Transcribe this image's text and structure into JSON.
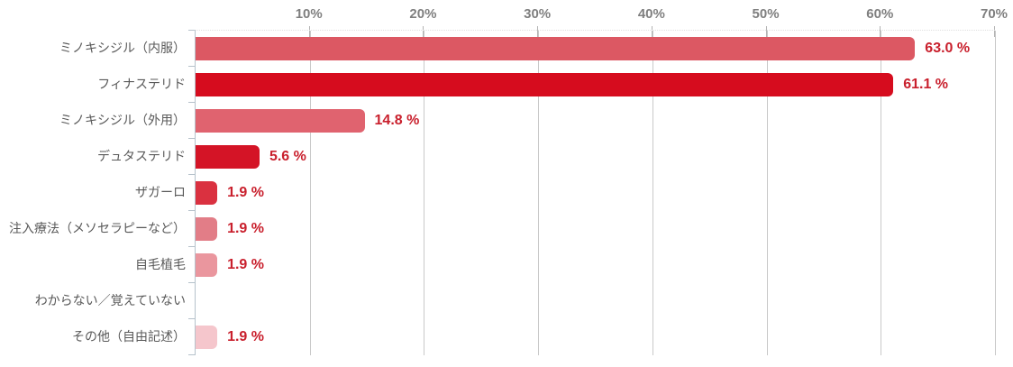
{
  "chart_data": {
    "type": "bar",
    "orientation": "horizontal",
    "categories": [
      "ミノキシジル（内服）",
      "フィナステリド",
      "ミノキシジル（外用）",
      "デュタステリド",
      "ザガーロ",
      "注入療法（メソセラピーなど）",
      "自毛植毛",
      "わからない／覚えていない",
      "その他（自由記述）"
    ],
    "values": [
      63.0,
      61.1,
      14.8,
      5.6,
      1.9,
      1.9,
      1.9,
      0,
      1.9
    ],
    "value_labels": [
      "63.0 %",
      "61.1 %",
      "14.8 %",
      "5.6 %",
      "1.9 %",
      "1.9 %",
      "1.9 %",
      "",
      "1.9 %"
    ],
    "bar_colors": [
      "#dc5863",
      "#d60c1e",
      "#e0636f",
      "#d41426",
      "#da3140",
      "#e27d87",
      "#ea969e",
      "",
      "#f5c6cc"
    ],
    "x_ticks": [
      "10%",
      "20%",
      "30%",
      "40%",
      "50%",
      "60%",
      "70%"
    ],
    "xlim": [
      0,
      70
    ],
    "grid": true,
    "legend": false,
    "title": "",
    "xlabel": "",
    "ylabel": "",
    "colors": {
      "value_label": "#c9202d",
      "category_label": "#595959",
      "axis_tick_label": "#7f7f7f",
      "gridline": "#c9c9c9",
      "axis_line": "#b6c2cb",
      "background": "#ffffff"
    }
  }
}
